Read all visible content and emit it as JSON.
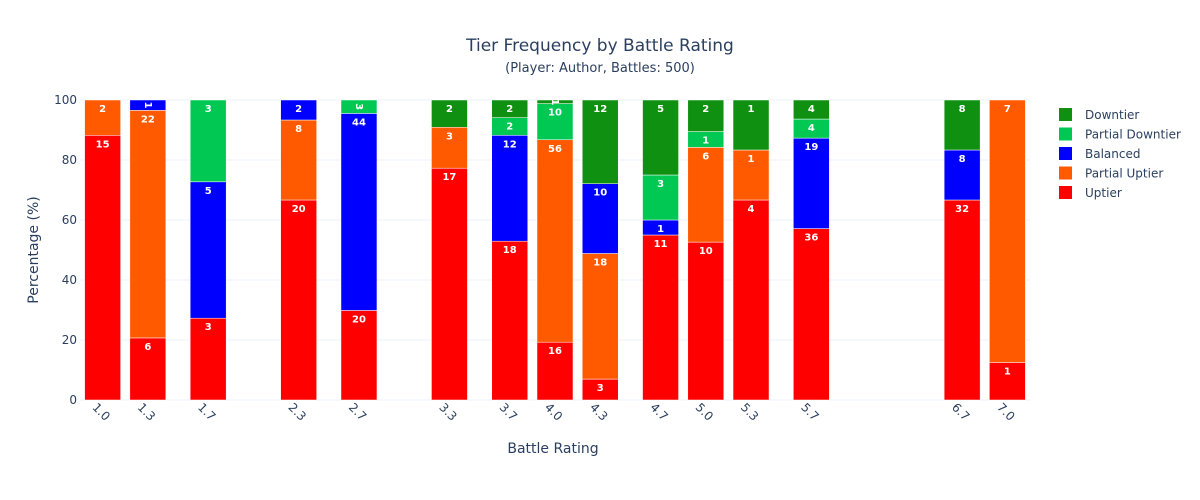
{
  "chart_data": {
    "type": "bar",
    "title": "Tier Frequency by Battle Rating",
    "subtitle": "(Player: Author, Battles: 500)",
    "xlabel": "Battle Rating",
    "ylabel": "Percentage (%)",
    "ylim": [
      0,
      100
    ],
    "yticks": [
      0,
      20,
      40,
      60,
      80,
      100
    ],
    "grid": true,
    "legend_position": "top-right",
    "xlim": [
      0.85,
      7.15
    ],
    "categories": [
      "1.0",
      "1.3",
      "1.7",
      "2.3",
      "2.7",
      "3.3",
      "3.7",
      "4.0",
      "4.3",
      "4.7",
      "5.0",
      "5.3",
      "5.7",
      "6.7",
      "7.0"
    ],
    "x": [
      1.0,
      1.3,
      1.7,
      2.3,
      2.7,
      3.3,
      3.7,
      4.0,
      4.3,
      4.7,
      5.0,
      5.3,
      5.7,
      6.7,
      7.0
    ],
    "series": [
      {
        "name": "Uptier",
        "color": "#ff0000",
        "values": [
          15,
          6,
          3,
          20,
          20,
          17,
          18,
          16,
          3,
          11,
          10,
          4,
          36,
          32,
          1
        ]
      },
      {
        "name": "Partial Uptier",
        "color": "#ff5a00",
        "values": [
          2,
          22,
          0,
          8,
          0,
          3,
          0,
          56,
          18,
          0,
          6,
          1,
          0,
          0,
          7
        ]
      },
      {
        "name": "Balanced",
        "color": "#0000ff",
        "values": [
          0,
          1,
          5,
          2,
          44,
          0,
          12,
          0,
          10,
          1,
          0,
          0,
          19,
          8,
          0
        ]
      },
      {
        "name": "Partial Downtier",
        "color": "#00c853",
        "values": [
          0,
          0,
          3,
          0,
          3,
          0,
          2,
          10,
          0,
          3,
          1,
          0,
          4,
          0,
          0
        ]
      },
      {
        "name": "Downtier",
        "color": "#109010",
        "values": [
          0,
          0,
          0,
          0,
          0,
          2,
          2,
          1,
          12,
          5,
          2,
          1,
          4,
          8,
          0
        ]
      }
    ]
  }
}
